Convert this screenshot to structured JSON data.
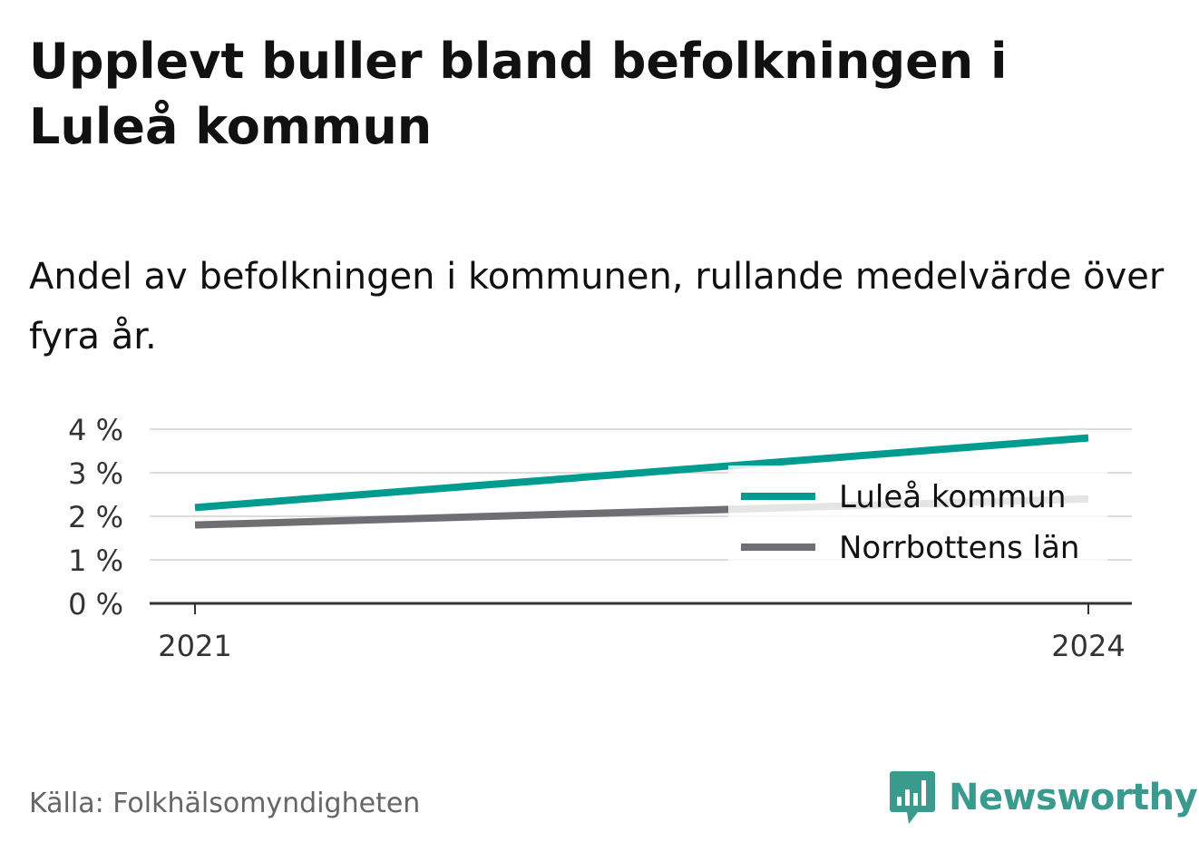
{
  "title": "Upplevt buller bland befolkningen i Luleå kommun",
  "subtitle": "Andel av befolkningen i kommunen, rullande medelvärde över fyra år.",
  "source": "Källa: Folkhälsomyndigheten",
  "brand": {
    "name": "Newsworthy",
    "color": "#3a9a8e"
  },
  "chart_data": {
    "type": "line",
    "title": "Upplevt buller bland befolkningen i Luleå kommun",
    "subtitle": "Andel av befolkningen i kommunen, rullande medelvärde över fyra år.",
    "x": [
      2021,
      2024
    ],
    "x_tick_labels": [
      "2021",
      "2024"
    ],
    "y_ticks": [
      0,
      1,
      2,
      3,
      4
    ],
    "y_tick_labels": [
      "0 %",
      "1 %",
      "2 %",
      "3 %",
      "4 %"
    ],
    "ylim": [
      0,
      4
    ],
    "xlabel": "",
    "ylabel": "",
    "grid": true,
    "legend": "right",
    "series": [
      {
        "name": "Luleå kommun",
        "color": "#009c8f",
        "values": [
          2.2,
          3.8
        ]
      },
      {
        "name": "Norrbottens län",
        "color": "#6e6e73",
        "values": [
          1.8,
          2.4
        ]
      }
    ]
  }
}
